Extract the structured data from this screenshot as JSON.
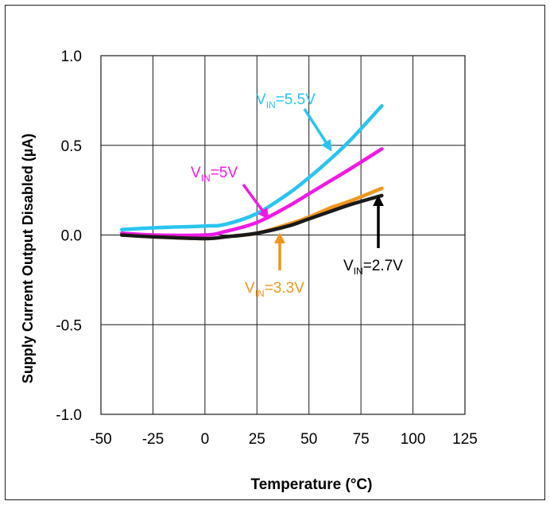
{
  "chart_data": {
    "type": "line",
    "title": "",
    "xlabel": "Temperature (°C)",
    "ylabel": "Supply Current Output Disabled (µA)",
    "xlim": [
      -50,
      125
    ],
    "ylim": [
      -1.0,
      1.0
    ],
    "xticks": [
      -50,
      -25,
      0,
      25,
      50,
      75,
      100,
      125
    ],
    "xtick_labels": [
      "-50",
      "-25",
      "0",
      "25",
      "50",
      "75",
      "100",
      "125"
    ],
    "yticks": [
      1.0,
      0.5,
      0.0,
      -0.5,
      -1.0
    ],
    "ytick_labels": [
      "1.0",
      "0.5",
      "0.0",
      "-0.5",
      "-1.0"
    ],
    "grid": true,
    "legend": "annotations",
    "series": [
      {
        "name": "VIN=5.5V",
        "color": "#29c4f0",
        "x": [
          -40,
          -25,
          0,
          10,
          25,
          40,
          50,
          60,
          70,
          85
        ],
        "y": [
          0.03,
          0.04,
          0.05,
          0.06,
          0.12,
          0.23,
          0.32,
          0.42,
          0.53,
          0.72
        ]
      },
      {
        "name": "VIN=5V",
        "color": "#f019e6",
        "x": [
          -40,
          -25,
          0,
          10,
          25,
          40,
          50,
          60,
          70,
          85
        ],
        "y": [
          0.01,
          0.0,
          0.0,
          0.02,
          0.07,
          0.16,
          0.23,
          0.3,
          0.37,
          0.48
        ]
      },
      {
        "name": "VIN=3.3V",
        "color": "#f0961e",
        "x": [
          -40,
          -25,
          0,
          10,
          25,
          40,
          50,
          60,
          70,
          85
        ],
        "y": [
          0.0,
          -0.01,
          -0.02,
          -0.01,
          0.01,
          0.06,
          0.1,
          0.15,
          0.19,
          0.26
        ]
      },
      {
        "name": "VIN=2.7V",
        "color": "#1a1a1a",
        "x": [
          -40,
          -25,
          0,
          10,
          25,
          40,
          50,
          60,
          70,
          85
        ],
        "y": [
          0.0,
          -0.01,
          -0.02,
          -0.01,
          0.01,
          0.05,
          0.09,
          0.13,
          0.17,
          0.22
        ]
      }
    ],
    "annotations": [
      {
        "main": "V",
        "sub": "IN",
        "rest": "=5.5V",
        "color": "#29c4f0",
        "series": 0,
        "arrow_to": [
          60,
          0.45
        ]
      },
      {
        "main": "V",
        "sub": "IN",
        "rest": "=5V",
        "color": "#f019e6",
        "series": 1,
        "arrow_to": [
          28,
          0.08
        ]
      },
      {
        "main": "V",
        "sub": "IN",
        "rest": "=3.3V",
        "color": "#f0961e",
        "series": 2,
        "arrow_to": [
          36,
          0.04
        ]
      },
      {
        "main": "V",
        "sub": "IN",
        "rest": "=2.7V",
        "color": "#000000",
        "series": 3,
        "arrow_to": [
          84,
          0.24
        ]
      }
    ]
  }
}
